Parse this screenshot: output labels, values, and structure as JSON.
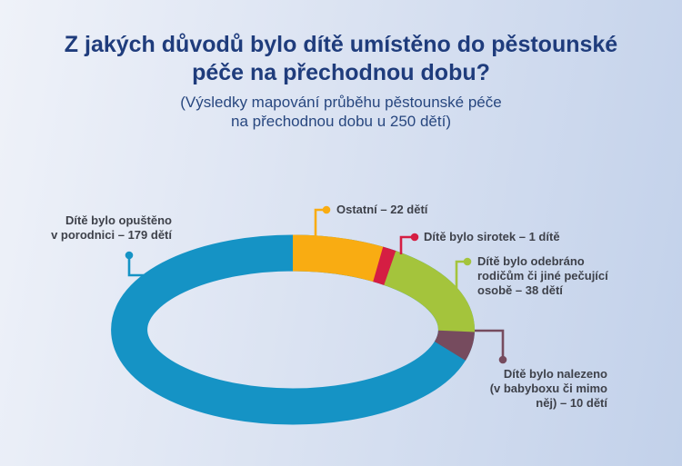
{
  "header": {
    "title_lines": [
      "Z jakých důvodů bylo dítě umístěno do pěstounské",
      "péče na přechodnou dobu?"
    ],
    "subtitle_lines": [
      "(Výsledky mapování průběhu pěstounské péče",
      "na přechodnou dobu u 250 dětí)"
    ]
  },
  "colors": {
    "background_left": "#EFF2F9",
    "background_right": "#C2D1EA",
    "title_text": "#1F3C7C",
    "label_text": "#3E414A"
  },
  "chart_data": {
    "type": "pie",
    "subtype": "donut",
    "title": "Z jakých důvodů bylo dítě umístěno do pěstounské péče na přechodnou dobu?",
    "total": 250,
    "unit": "dětí",
    "slices": [
      {
        "name": "opusteno",
        "category": "Dítě bylo opuštěno v porodnici",
        "value": 179,
        "color": "#1593C5",
        "label_lines": [
          "Dítě bylo opuštěno",
          "v porodnici – 179 dětí"
        ]
      },
      {
        "name": "ostatni",
        "category": "Ostatní",
        "value": 22,
        "color": "#F9AC12",
        "label_lines": [
          "Ostatní – 22 dětí"
        ]
      },
      {
        "name": "sirotek",
        "category": "Dítě bylo sirotek",
        "value": 1,
        "color": "#D51E43",
        "label_lines": [
          "Dítě bylo sirotek – 1 dítě"
        ]
      },
      {
        "name": "odebrano",
        "category": "Dítě bylo odebráno rodičům či jiné pečující osobě",
        "value": 38,
        "color": "#A4C43C",
        "label_lines": [
          "Dítě bylo odebráno",
          "rodičům či jiné pečující",
          "osobě – 38 dětí"
        ]
      },
      {
        "name": "nalezeno",
        "category": "Dítě bylo nalezeno (v babyboxu či mimo něj)",
        "value": 10,
        "color": "#764B5E",
        "label_lines": [
          "Dítě bylo nalezeno",
          "(v babyboxu či mimo",
          "něj) – 10 dětí"
        ]
      }
    ],
    "layout": {
      "start_angle_deg": 0,
      "direction": "clockwise",
      "order_from_top": [
        "ostatni",
        "sirotek",
        "odebrano",
        "nalezeno",
        "opusteno"
      ],
      "min_slice_display_deg": 5,
      "legend": "callout-labels-with-leader-lines"
    }
  }
}
